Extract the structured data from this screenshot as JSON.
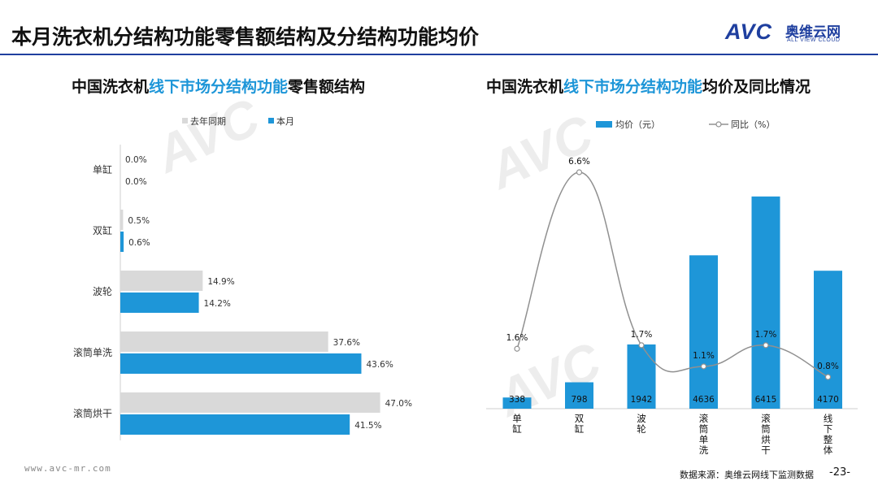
{
  "page": {
    "title": "本月洗衣机分结构功能零售额结构及分结构功能均价",
    "logo": {
      "mark": "AVC",
      "name_cn": "奥维云网",
      "name_en": "ALL VIEW CLOUD"
    },
    "footer": {
      "url": "www.avc-mr.com",
      "source": "数据来源：奥维云网线下监测数据",
      "page_number": "-23-"
    },
    "colors": {
      "primary_blue": "#1e96d8",
      "gray": "#d9d9d9",
      "title_blue": "#1f3f9f",
      "line_gray": "#909090"
    }
  },
  "chart_data": [
    {
      "type": "bar",
      "orientation": "horizontal",
      "title_parts": [
        "中国洗衣机",
        "线下市场分结构功能",
        "零售额结构"
      ],
      "categories": [
        "单缸",
        "双缸",
        "波轮",
        "滚筒单洗",
        "滚筒烘干"
      ],
      "series": [
        {
          "name": "去年同期",
          "values": [
            0.0,
            0.5,
            14.9,
            37.6,
            47.0
          ],
          "labels": [
            "0.0%",
            "0.5%",
            "14.9%",
            "37.6%",
            "47.0%"
          ]
        },
        {
          "name": "本月",
          "values": [
            0.0,
            0.6,
            14.2,
            43.6,
            41.5
          ],
          "labels": [
            "0.0%",
            "0.6%",
            "14.2%",
            "43.6%",
            "41.5%"
          ]
        }
      ],
      "xlim": [
        0,
        50
      ],
      "legend": "top"
    },
    {
      "type": "bar",
      "combo": "bar+line",
      "title_parts": [
        "中国洗衣机",
        "线下市场分结构功能",
        "均价及同比情况"
      ],
      "categories": [
        "单缸",
        "双缸",
        "波轮",
        "滚筒单洗",
        "滚筒烘干",
        "线下整体"
      ],
      "series": [
        {
          "name": "均价（元）",
          "type": "bar",
          "values": [
            338,
            798,
            1942,
            4636,
            6415,
            4170
          ],
          "labels": [
            "338",
            "798",
            "1942",
            "4636",
            "6415",
            "4170"
          ]
        },
        {
          "name": "同比（%）",
          "type": "line",
          "values": [
            1.6,
            6.6,
            1.7,
            1.1,
            1.7,
            0.8
          ],
          "labels": [
            "1.6%",
            "6.6%",
            "1.7%",
            "1.1%",
            "1.7%",
            "0.8%"
          ]
        }
      ],
      "ylim": [
        0,
        7000
      ],
      "y2lim": [
        0,
        7.2
      ],
      "legend": "top"
    }
  ]
}
